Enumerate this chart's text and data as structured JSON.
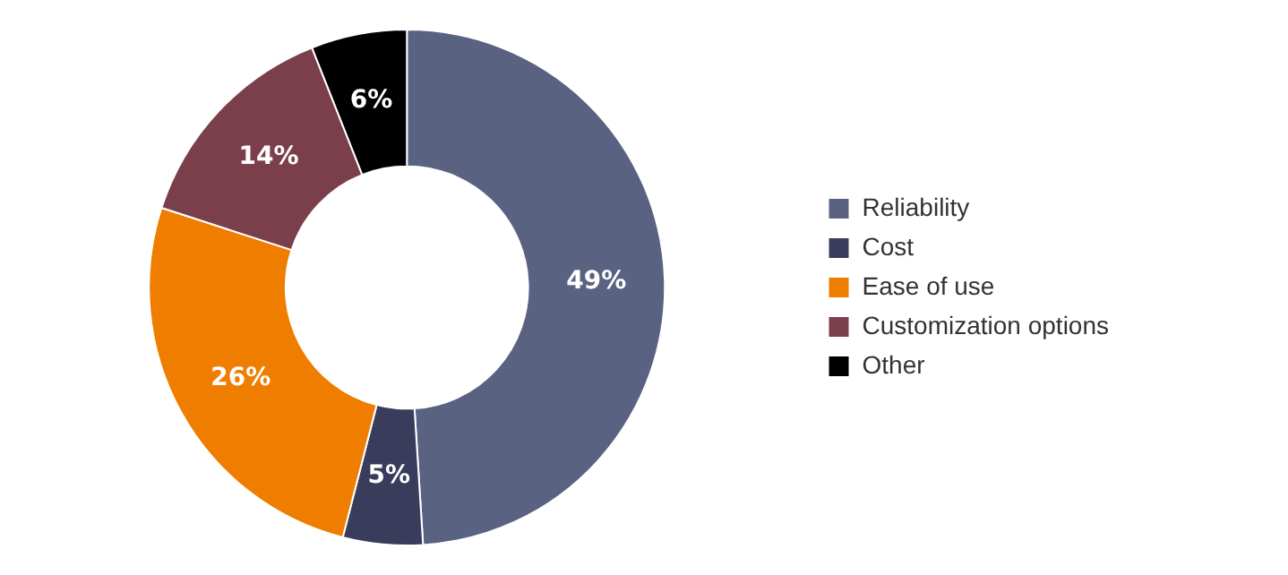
{
  "chart_data": {
    "type": "donut",
    "categories": [
      "Reliability",
      "Cost",
      "Ease of use",
      "Customization options",
      "Other"
    ],
    "values": [
      49,
      5,
      26,
      14,
      6
    ],
    "colors": [
      "#5a6282",
      "#393c5b",
      "#ef7d00",
      "#7b3f4c",
      "#000000"
    ],
    "value_labels": [
      "49%",
      "5%",
      "26%",
      "14%",
      "6%"
    ],
    "legend": "right"
  }
}
